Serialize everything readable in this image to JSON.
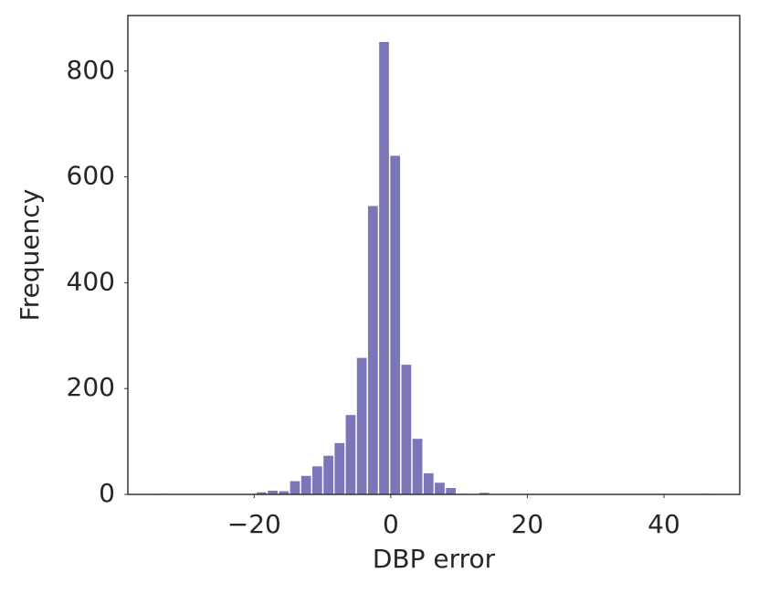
{
  "chart_data": {
    "type": "histogram",
    "xlabel": "DBP error",
    "ylabel": "Frequency",
    "bins": [
      -34.4,
      -32.77,
      -31.14,
      -29.51,
      -27.88,
      -26.25,
      -24.62,
      -22.99,
      -21.36,
      -19.73,
      -18.1,
      -16.47,
      -14.84,
      -13.21,
      -11.58,
      -9.95,
      -8.32,
      -6.69,
      -5.06,
      -3.43,
      -1.8,
      -0.17,
      1.46,
      3.09,
      4.72,
      6.35,
      7.98,
      9.61,
      11.24,
      12.87,
      14.5,
      16.13,
      17.76,
      19.39,
      21.02,
      22.65,
      24.28,
      25.91,
      27.54,
      29.17,
      30.8,
      32.43,
      34.06,
      35.69,
      37.32,
      38.95,
      40.58,
      42.21,
      43.84,
      45.47,
      47.1
    ],
    "values": [
      1,
      0,
      0,
      0,
      0,
      0,
      0,
      0,
      0,
      4,
      7,
      6,
      25,
      35,
      53,
      73,
      97,
      150,
      258,
      545,
      855,
      640,
      245,
      105,
      40,
      22,
      12,
      1,
      0,
      3,
      0,
      0,
      0,
      0,
      0,
      0,
      0,
      0,
      0,
      0,
      0,
      0,
      0,
      0,
      0,
      0,
      0,
      0,
      0,
      1
    ],
    "color": "#7a76b8",
    "xlim": [
      -38.5,
      51.1
    ],
    "ylim": [
      0,
      905
    ],
    "xticks": [
      {
        "value": -20,
        "label": "−20"
      },
      0,
      20,
      40
    ],
    "yticks": [
      0,
      200,
      400,
      600,
      800
    ],
    "grid": false
  }
}
